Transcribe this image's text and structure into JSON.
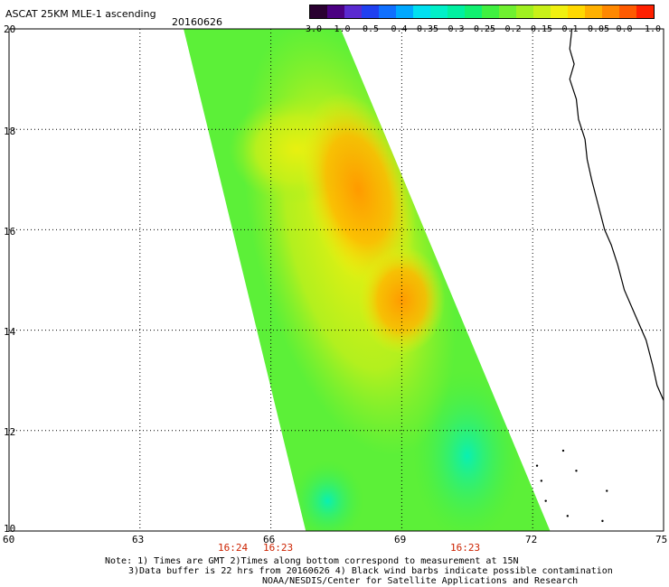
{
  "title": "ASCAT 25KM MLE-1 ascending",
  "date": "20160626",
  "colorbar": {
    "labels": [
      "-3.0",
      "-1.0",
      "-0.5",
      "-0.4",
      "-0.35",
      "-0.3",
      "-0.25",
      "-0.2",
      "-0.15",
      "-0.1",
      "-0.05",
      "0.0",
      "1.0"
    ],
    "colors": [
      "#2a0030",
      "#4b0082",
      "#5a2ad0",
      "#2040f0",
      "#1070ff",
      "#00a8ff",
      "#00e0f0",
      "#00f0c8",
      "#00f0a0",
      "#10f070",
      "#40f040",
      "#70f030",
      "#a0f020",
      "#c8f018",
      "#f0f010",
      "#ffd800",
      "#ffb000",
      "#ff8800",
      "#ff5a00",
      "#ff2000"
    ]
  },
  "axes": {
    "lat_labels": [
      "20",
      "18",
      "16",
      "14",
      "12",
      "10"
    ],
    "lon_labels": [
      "60",
      "63",
      "66",
      "69",
      "72",
      "75"
    ]
  },
  "pass_times": [
    "16:24",
    "16:23",
    "16:23"
  ],
  "notes": [
    "Note: 1) Times are GMT 2)Times along bottom correspond to measurement at 15N",
    "3)Data buffer is 22 hrs from 20160626 4) Black wind barbs indicate possible contamination",
    "NOAA/NESDIS/Center for Satellite Applications and Research"
  ],
  "chart_data": {
    "type": "heatmap",
    "title": "ASCAT 25KM MLE-1 ascending",
    "subtitle": "20160626",
    "xlabel": "",
    "ylabel": "",
    "xlim": [
      60,
      75
    ],
    "ylim": [
      10,
      20
    ],
    "x_ticks": [
      60,
      63,
      66,
      69,
      72,
      75
    ],
    "y_ticks": [
      10,
      12,
      14,
      16,
      18,
      20
    ],
    "grid": true,
    "legend": "colorbar top-right",
    "colorbar_range": [
      -3.0,
      1.0
    ],
    "swath": {
      "lat_top": 20,
      "lat_bottom": 10,
      "lon_west_top": 64.0,
      "lon_east_top": 67.6,
      "lon_west_bottom": 66.8,
      "lon_east_bottom": 72.4
    }
  }
}
